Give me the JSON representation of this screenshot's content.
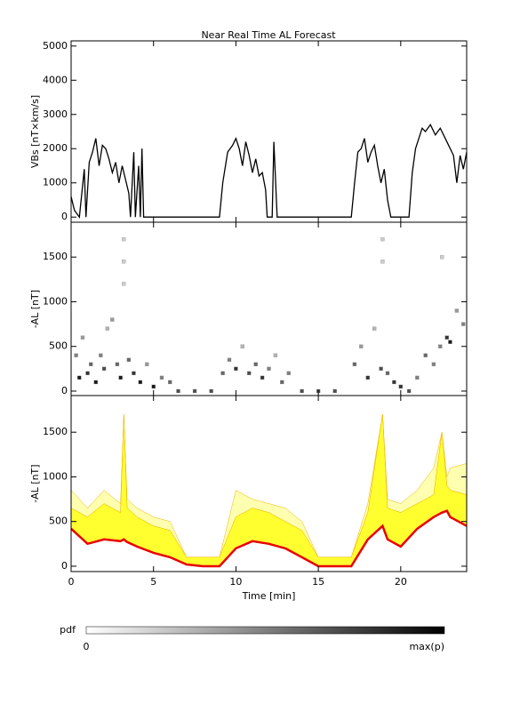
{
  "chart_data": [
    {
      "type": "line",
      "title": "Near Real Time AL Forecast",
      "ylabel": "VBs [nT×km/s]",
      "color": "#000000",
      "xlim": [
        0,
        24
      ],
      "xticks": [
        0,
        5,
        10,
        15,
        20
      ],
      "ylim": [
        -150,
        5150
      ],
      "yticks": [
        0,
        1000,
        2000,
        3000,
        4000,
        5000
      ],
      "x": [
        0,
        0.2,
        0.5,
        0.8,
        0.9,
        1.1,
        1.3,
        1.5,
        1.7,
        1.9,
        2.1,
        2.3,
        2.5,
        2.7,
        2.9,
        3.1,
        3.3,
        3.5,
        3.6,
        3.8,
        3.9,
        4.1,
        4.2,
        4.3,
        4.4,
        9.0,
        9.2,
        9.5,
        9.8,
        10.0,
        10.2,
        10.4,
        10.6,
        10.8,
        11.0,
        11.2,
        11.4,
        11.6,
        11.8,
        11.9,
        12.2,
        12.3,
        12.5,
        17.0,
        17.2,
        17.4,
        17.6,
        17.8,
        18.0,
        18.2,
        18.4,
        18.6,
        18.8,
        19.0,
        19.2,
        19.4,
        20.5,
        20.7,
        20.9,
        21.1,
        21.3,
        21.5,
        21.8,
        22.1,
        22.4,
        22.7,
        23.0,
        23.2,
        23.4,
        23.6,
        23.8,
        24.0
      ],
      "values": [
        600,
        200,
        0,
        1400,
        0,
        1600,
        1900,
        2300,
        1500,
        2100,
        2000,
        1700,
        1300,
        1600,
        1000,
        1500,
        1100,
        700,
        0,
        1900,
        0,
        1500,
        0,
        2000,
        0,
        0,
        1000,
        1900,
        2100,
        2300,
        2000,
        1500,
        2200,
        1800,
        1300,
        1700,
        1200,
        1300,
        800,
        0,
        0,
        2200,
        0,
        0,
        1000,
        1900,
        2000,
        2300,
        1600,
        1900,
        2100,
        1500,
        1000,
        1400,
        500,
        0,
        0,
        1300,
        2000,
        2300,
        2600,
        2500,
        2700,
        2400,
        2600,
        2300,
        2000,
        1800,
        1000,
        1800,
        1400,
        1900
      ]
    },
    {
      "type": "scatter",
      "ylabel": "-AL [nT]",
      "xlim": [
        0,
        24
      ],
      "xticks": [
        0,
        5,
        10,
        15,
        20
      ],
      "ylim": [
        -50,
        1890
      ],
      "yticks": [
        0,
        500,
        1000,
        1500
      ],
      "x": [
        0.3,
        0.5,
        0.7,
        1.0,
        1.2,
        1.5,
        1.8,
        2.0,
        2.2,
        2.5,
        2.8,
        3.0,
        3.2,
        3.2,
        3.2,
        3.5,
        3.8,
        4.2,
        4.6,
        5.0,
        5.5,
        6.0,
        6.5,
        7.5,
        8.5,
        9.2,
        9.6,
        10.0,
        10.4,
        10.8,
        11.2,
        11.6,
        12.0,
        12.4,
        12.8,
        13.2,
        14.0,
        15.0,
        16.0,
        17.2,
        17.6,
        18.0,
        18.4,
        18.8,
        18.9,
        18.9,
        19.2,
        19.6,
        20.0,
        20.5,
        21.0,
        21.5,
        22.0,
        22.4,
        22.5,
        22.8,
        23.0,
        23.4,
        23.8
      ],
      "y": [
        400,
        150,
        600,
        200,
        300,
        100,
        400,
        250,
        700,
        800,
        300,
        150,
        1700,
        1450,
        1200,
        350,
        200,
        100,
        300,
        50,
        150,
        100,
        0,
        0,
        0,
        200,
        350,
        250,
        500,
        200,
        300,
        150,
        250,
        400,
        100,
        200,
        0,
        0,
        0,
        300,
        500,
        150,
        700,
        250,
        1700,
        1450,
        200,
        100,
        50,
        0,
        150,
        400,
        300,
        500,
        1500,
        600,
        550,
        900,
        750
      ],
      "density": [
        0.5,
        0.9,
        0.4,
        0.8,
        0.6,
        0.9,
        0.5,
        0.7,
        0.3,
        0.4,
        0.6,
        0.9,
        0.2,
        0.2,
        0.2,
        0.6,
        0.8,
        0.9,
        0.4,
        0.9,
        0.5,
        0.6,
        0.7,
        0.7,
        0.7,
        0.6,
        0.5,
        0.8,
        0.3,
        0.7,
        0.6,
        0.8,
        0.5,
        0.3,
        0.6,
        0.5,
        0.7,
        0.7,
        0.7,
        0.6,
        0.4,
        0.8,
        0.3,
        0.7,
        0.2,
        0.2,
        0.6,
        0.8,
        0.8,
        0.7,
        0.5,
        0.6,
        0.5,
        0.5,
        0.2,
        0.8,
        0.9,
        0.4,
        0.5
      ]
    },
    {
      "type": "area",
      "ylabel": "-AL [nT]",
      "xlabel": "Time [min]",
      "xlim": [
        0,
        24
      ],
      "xticks": [
        0,
        5,
        10,
        15,
        20
      ],
      "ylim": [
        -60,
        1910
      ],
      "yticks": [
        0,
        500,
        1000,
        1500
      ],
      "x": [
        0,
        1,
        2,
        3,
        3.2,
        3.4,
        4,
        5,
        6,
        7,
        8,
        9,
        10,
        11,
        12,
        13,
        14,
        15,
        16,
        17,
        18,
        18.9,
        19.2,
        20,
        21,
        22,
        22.5,
        22.8,
        23,
        24
      ],
      "series": [
        {
          "color": "#e80000",
          "values": [
            420,
            250,
            300,
            280,
            300,
            270,
            220,
            150,
            100,
            20,
            0,
            0,
            200,
            280,
            250,
            200,
            100,
            0,
            0,
            0,
            300,
            450,
            300,
            220,
            420,
            550,
            600,
            620,
            550,
            450
          ]
        },
        {
          "color": "#ffff30",
          "values": [
            650,
            550,
            700,
            600,
            1700,
            650,
            550,
            450,
            400,
            100,
            100,
            100,
            550,
            650,
            600,
            500,
            400,
            100,
            100,
            100,
            600,
            1700,
            650,
            600,
            700,
            800,
            1500,
            900,
            850,
            800
          ]
        },
        {
          "color": "#ffffb0",
          "values": [
            850,
            650,
            850,
            700,
            1700,
            750,
            650,
            550,
            500,
            100,
            100,
            100,
            850,
            750,
            700,
            650,
            500,
            100,
            100,
            100,
            700,
            1700,
            750,
            700,
            850,
            1100,
            1500,
            1000,
            1100,
            1150
          ]
        }
      ]
    }
  ],
  "colorbar": {
    "label": "pdf",
    "min_label": "0",
    "max_label": "max(p)"
  }
}
